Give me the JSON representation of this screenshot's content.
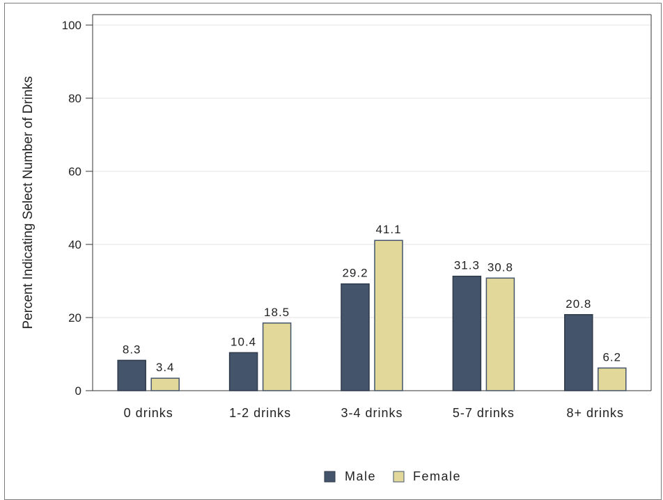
{
  "chart_data": {
    "type": "bar",
    "ylabel": "Percent Indicating Select Number of Drinks",
    "ylim": [
      0,
      100
    ],
    "yticks": [
      0,
      20,
      40,
      60,
      80,
      100
    ],
    "grid": true,
    "legend_position": "bottom",
    "categories": [
      "0 drinks",
      "1-2 drinks",
      "3-4 drinks",
      "5-7 drinks",
      "8+ drinks"
    ],
    "series": [
      {
        "name": "Male",
        "color": "#44546a",
        "values": [
          8.3,
          10.4,
          29.2,
          31.3,
          20.8
        ]
      },
      {
        "name": "Female",
        "color": "#e1d89a",
        "values": [
          3.4,
          18.5,
          41.1,
          30.8,
          6.2
        ]
      }
    ]
  }
}
